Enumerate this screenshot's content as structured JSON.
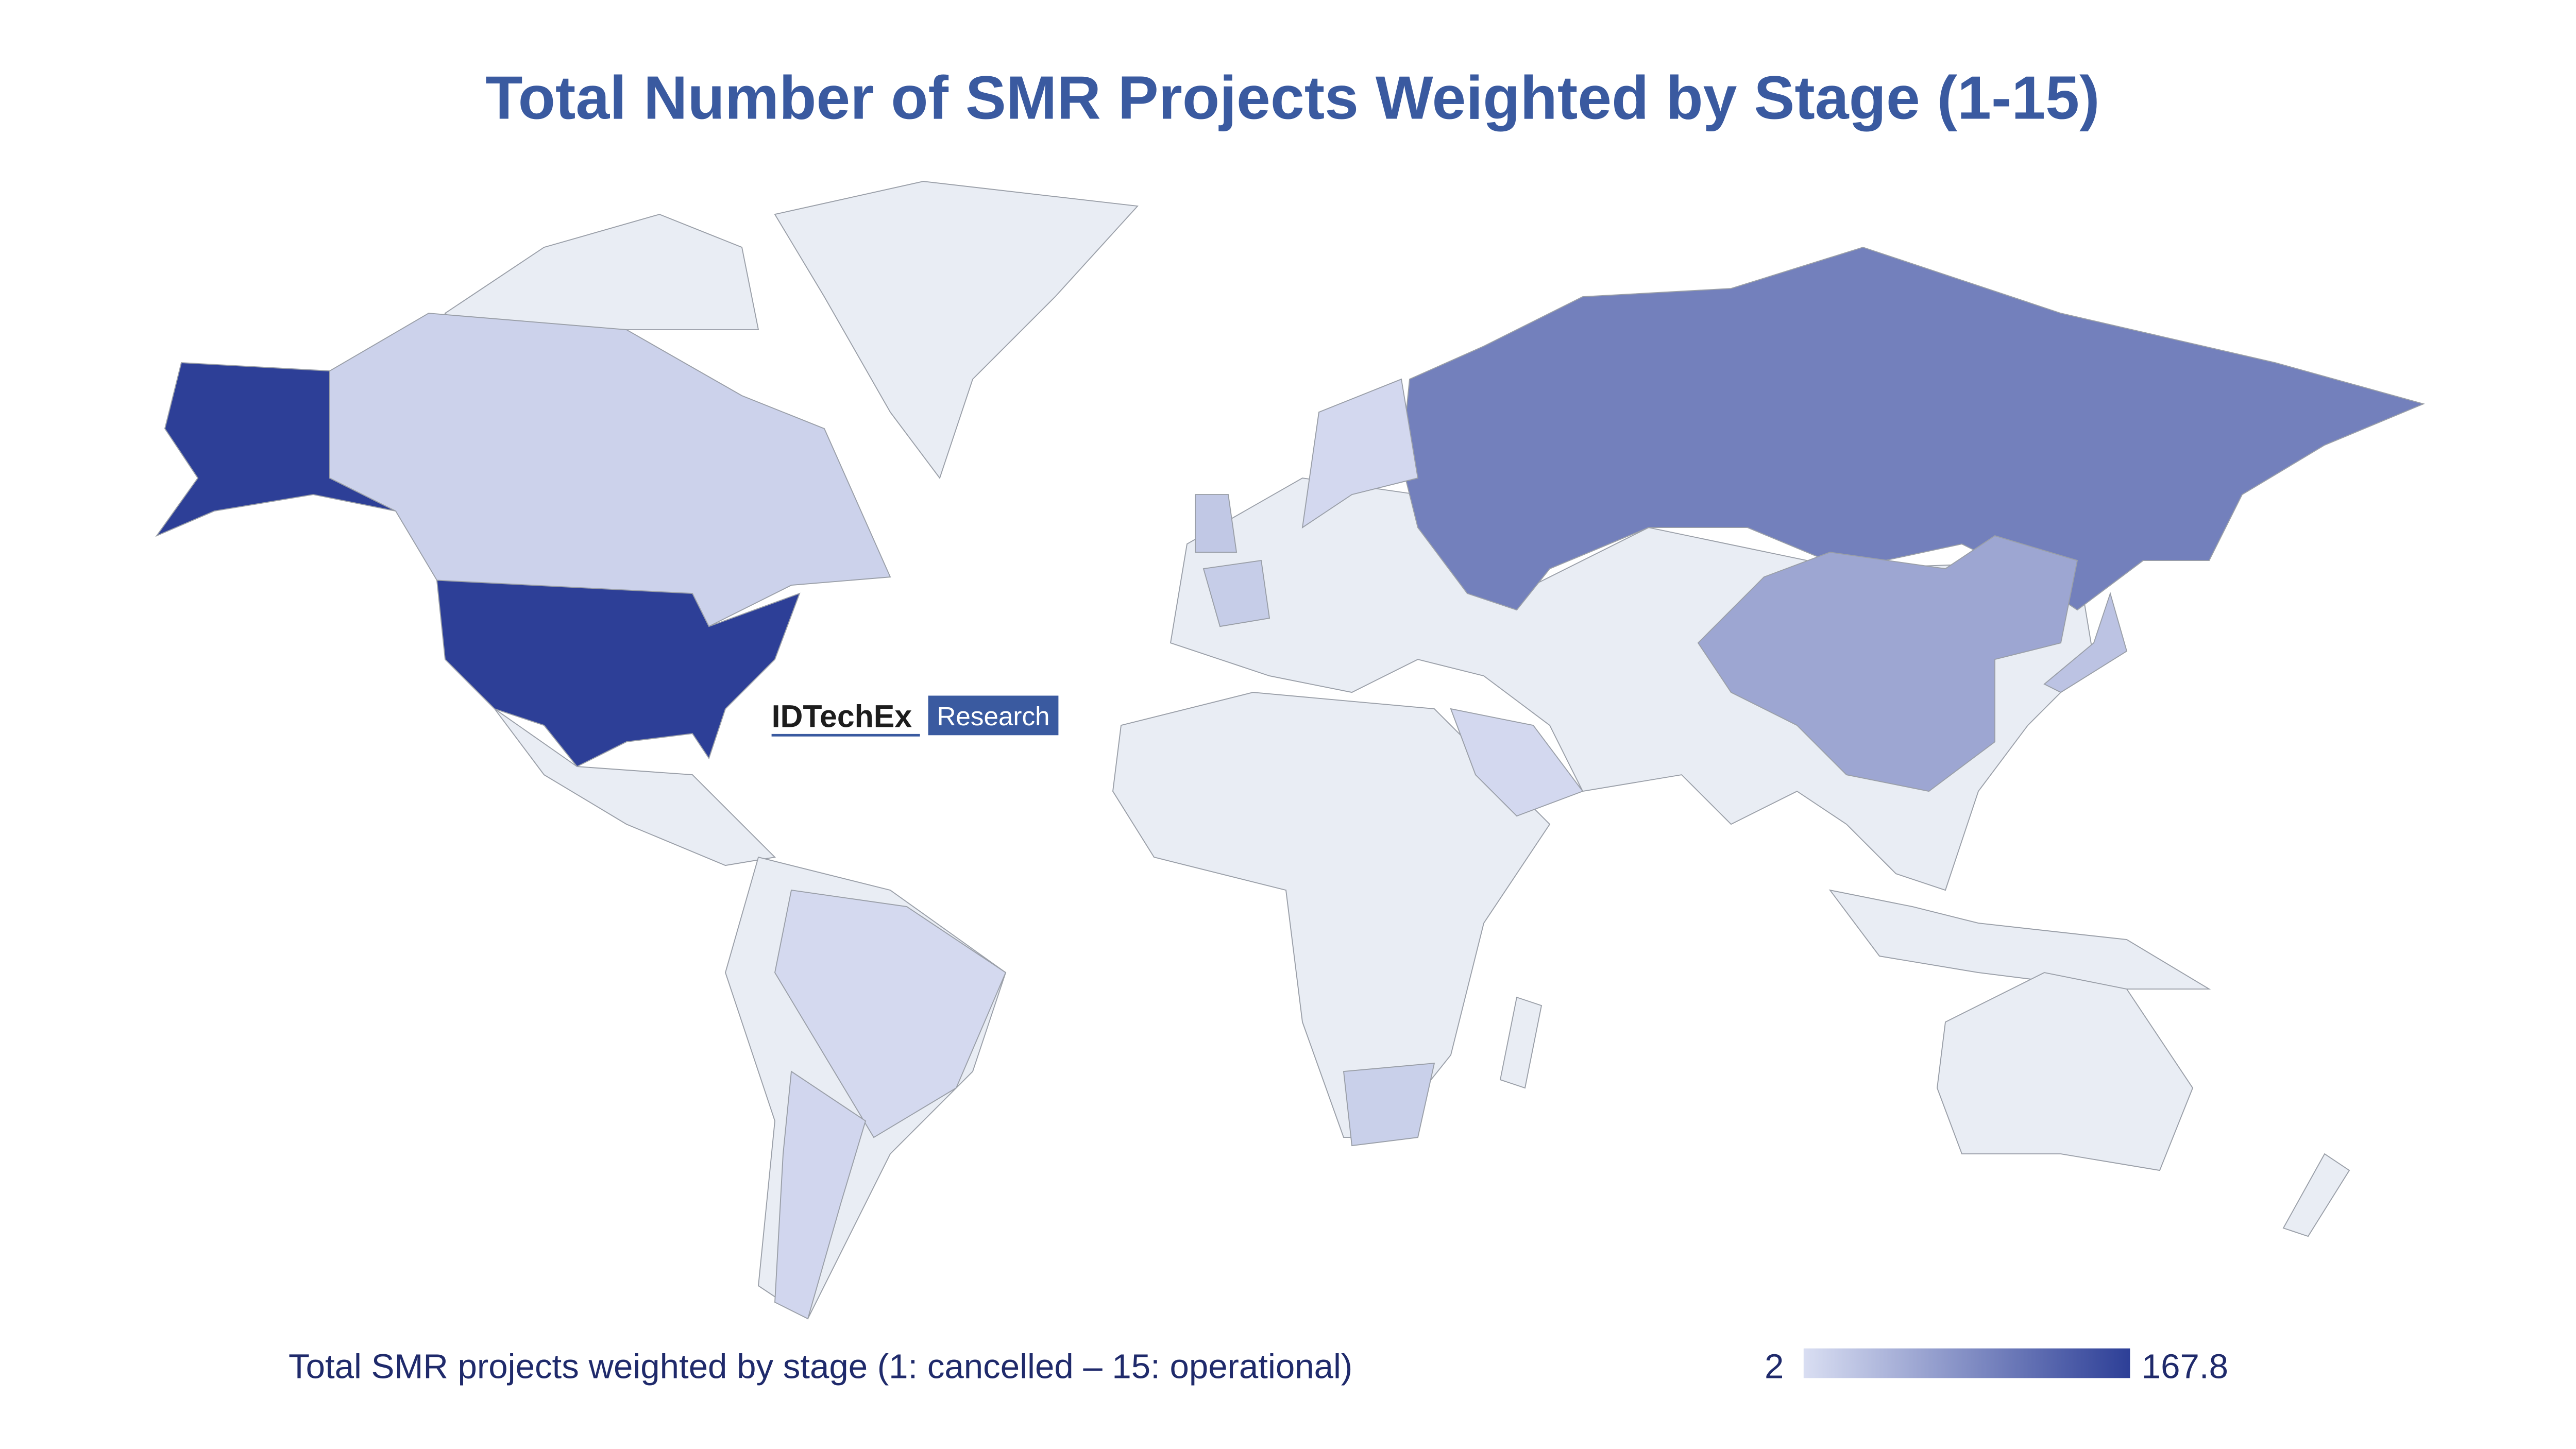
{
  "chart_data": {
    "type": "choropleth",
    "title": "Total Number of SMR Projects Weighted by Stage (1-15)",
    "logo": "IDTechEx",
    "logo_tag": "Research",
    "colorbar_label": "Total SMR projects weighted by stage (1: cancelled – 15: operational)",
    "values": [
      167.8,
      100,
      60,
      15,
      7,
      10,
      30,
      25,
      20,
      17,
      8,
      8
    ],
    "colorlim": [
      2,
      167.8
    ],
    "colorscale": [
      "#d9def2",
      "#2d3f97"
    ]
  }
}
